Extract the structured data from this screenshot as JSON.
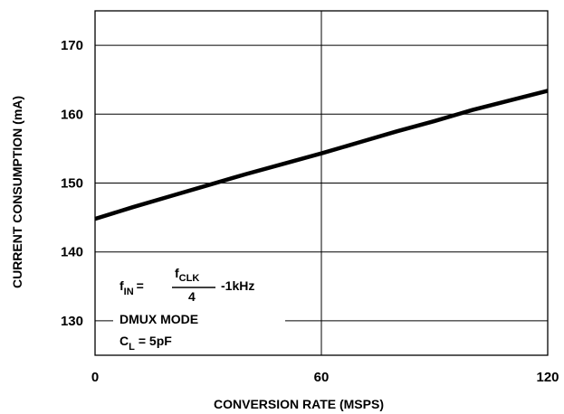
{
  "chart_data": {
    "type": "line",
    "xlabel": "CONVERSION RATE (MSPS)",
    "ylabel": "CURRENT CONSUMPTION (mA)",
    "xlim": [
      0,
      120
    ],
    "ylim": [
      125,
      175
    ],
    "x_ticks": [
      "0",
      "60",
      "120"
    ],
    "y_ticks": [
      "130",
      "140",
      "150",
      "160",
      "170"
    ],
    "x_tick_values": [
      0,
      60,
      120
    ],
    "y_tick_values": [
      130,
      140,
      150,
      160,
      170
    ],
    "grid": true,
    "series": [
      {
        "x": [
          0,
          10,
          20,
          30,
          40,
          50,
          60,
          70,
          80,
          90,
          100,
          110,
          120
        ],
        "values": [
          144.8,
          146.5,
          148.1,
          149.7,
          151.3,
          152.8,
          154.3,
          155.9,
          157.5,
          159.0,
          160.6,
          162.0,
          163.4
        ]
      }
    ],
    "annotations": {
      "fin_lhs": "f",
      "fin_lhs_sub": "IN",
      "equals": "=",
      "numerator": "f",
      "numerator_sub": "CLK",
      "denominator": "4",
      "suffix": "-1kHz",
      "mode": "DMUX MODE",
      "cl": "C",
      "cl_sub": "L",
      "cl_value": "= 5pF"
    }
  }
}
